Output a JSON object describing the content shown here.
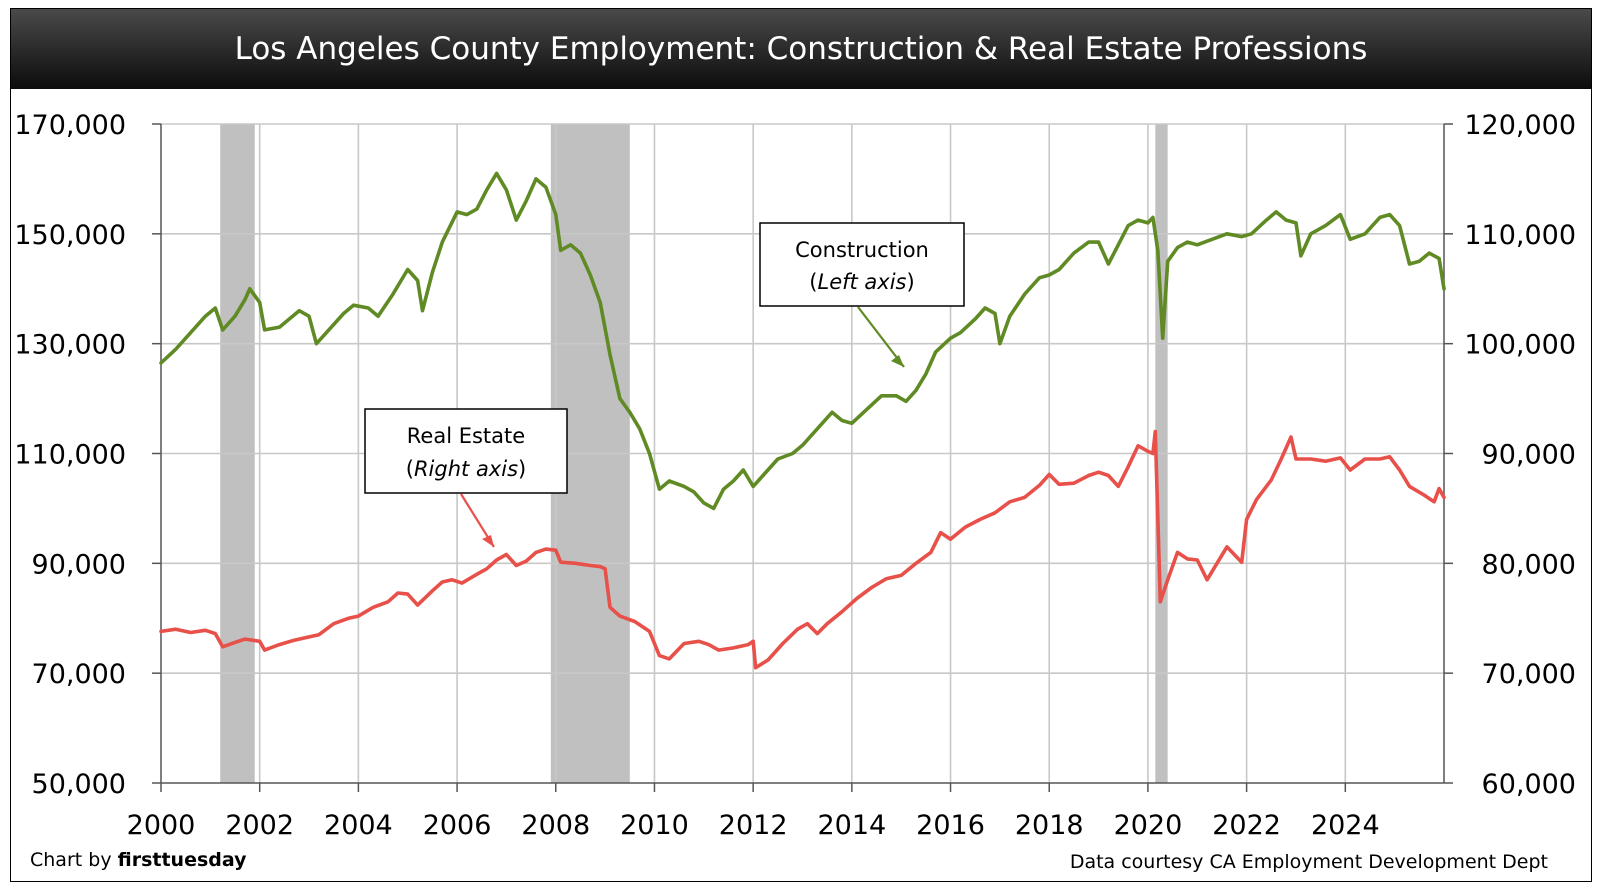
{
  "colors": {
    "construction": "#5f8a24",
    "real_estate": "#e8504a",
    "recession": "#c0c0c0",
    "grid": "#c8c8c8"
  },
  "chart_data": {
    "type": "line",
    "title": "Los Angeles County Employment: Construction & Real Estate Professions",
    "x_ticks": [
      "2000",
      "2002",
      "2004",
      "2006",
      "2008",
      "2010",
      "2012",
      "2014",
      "2016",
      "2018",
      "2020",
      "2022",
      "2024"
    ],
    "xlim": [
      2000,
      2026
    ],
    "left_axis": {
      "ylim": [
        50000,
        170000
      ],
      "ticks": [
        "50,000",
        "70,000",
        "90,000",
        "110,000",
        "130,000",
        "150,000",
        "170,000"
      ]
    },
    "right_axis": {
      "ylim": [
        60000,
        120000
      ],
      "ticks": [
        "60,000",
        "70,000",
        "80,000",
        "90,000",
        "100,000",
        "110,000",
        "120,000"
      ]
    },
    "grid": true,
    "recessions": [
      [
        2001.2,
        2001.9
      ],
      [
        2007.9,
        2009.5
      ],
      [
        2020.15,
        2020.4
      ]
    ],
    "series": [
      {
        "name": "Construction",
        "axis": "left",
        "points": [
          [
            2000.0,
            126500
          ],
          [
            2000.3,
            129000
          ],
          [
            2000.6,
            132000
          ],
          [
            2000.9,
            135000
          ],
          [
            2001.1,
            136500
          ],
          [
            2001.25,
            132500
          ],
          [
            2001.5,
            135000
          ],
          [
            2001.7,
            138000
          ],
          [
            2001.8,
            140000
          ],
          [
            2002.0,
            137500
          ],
          [
            2002.1,
            132500
          ],
          [
            2002.4,
            133000
          ],
          [
            2002.6,
            134500
          ],
          [
            2002.8,
            136000
          ],
          [
            2003.0,
            135000
          ],
          [
            2003.15,
            130000
          ],
          [
            2003.4,
            132500
          ],
          [
            2003.7,
            135500
          ],
          [
            2003.9,
            137000
          ],
          [
            2004.2,
            136500
          ],
          [
            2004.4,
            135000
          ],
          [
            2004.7,
            139000
          ],
          [
            2005.0,
            143500
          ],
          [
            2005.2,
            141500
          ],
          [
            2005.3,
            136000
          ],
          [
            2005.5,
            143000
          ],
          [
            2005.7,
            148500
          ],
          [
            2006.0,
            154000
          ],
          [
            2006.2,
            153500
          ],
          [
            2006.4,
            154500
          ],
          [
            2006.6,
            158000
          ],
          [
            2006.8,
            161000
          ],
          [
            2007.0,
            158000
          ],
          [
            2007.2,
            152500
          ],
          [
            2007.4,
            156000
          ],
          [
            2007.6,
            160000
          ],
          [
            2007.8,
            158500
          ],
          [
            2008.0,
            153500
          ],
          [
            2008.1,
            147000
          ],
          [
            2008.3,
            148000
          ],
          [
            2008.5,
            146500
          ],
          [
            2008.7,
            142500
          ],
          [
            2008.9,
            137500
          ],
          [
            2009.1,
            128000
          ],
          [
            2009.3,
            120000
          ],
          [
            2009.5,
            117500
          ],
          [
            2009.7,
            114500
          ],
          [
            2009.9,
            110000
          ],
          [
            2010.1,
            103500
          ],
          [
            2010.3,
            105000
          ],
          [
            2010.6,
            104000
          ],
          [
            2010.8,
            103000
          ],
          [
            2011.0,
            101000
          ],
          [
            2011.2,
            100000
          ],
          [
            2011.4,
            103500
          ],
          [
            2011.6,
            105000
          ],
          [
            2011.8,
            107000
          ],
          [
            2012.0,
            104000
          ],
          [
            2012.2,
            106000
          ],
          [
            2012.5,
            109000
          ],
          [
            2012.8,
            110000
          ],
          [
            2013.0,
            111500
          ],
          [
            2013.3,
            114500
          ],
          [
            2013.6,
            117500
          ],
          [
            2013.8,
            116000
          ],
          [
            2014.0,
            115500
          ],
          [
            2014.3,
            118000
          ],
          [
            2014.6,
            120500
          ],
          [
            2014.9,
            120500
          ],
          [
            2015.1,
            119500
          ],
          [
            2015.3,
            121500
          ],
          [
            2015.5,
            124500
          ],
          [
            2015.7,
            128500
          ],
          [
            2016.0,
            131000
          ],
          [
            2016.2,
            132000
          ],
          [
            2016.5,
            134500
          ],
          [
            2016.7,
            136500
          ],
          [
            2016.9,
            135500
          ],
          [
            2017.0,
            130000
          ],
          [
            2017.2,
            135000
          ],
          [
            2017.5,
            139000
          ],
          [
            2017.8,
            142000
          ],
          [
            2018.0,
            142500
          ],
          [
            2018.2,
            143500
          ],
          [
            2018.5,
            146500
          ],
          [
            2018.8,
            148500
          ],
          [
            2019.0,
            148500
          ],
          [
            2019.2,
            144500
          ],
          [
            2019.4,
            148000
          ],
          [
            2019.6,
            151500
          ],
          [
            2019.8,
            152500
          ],
          [
            2020.0,
            152000
          ],
          [
            2020.1,
            153000
          ],
          [
            2020.2,
            147000
          ],
          [
            2020.3,
            131000
          ],
          [
            2020.4,
            145000
          ],
          [
            2020.6,
            147500
          ],
          [
            2020.8,
            148500
          ],
          [
            2021.0,
            148000
          ],
          [
            2021.3,
            149000
          ],
          [
            2021.6,
            150000
          ],
          [
            2021.9,
            149500
          ],
          [
            2022.1,
            150000
          ],
          [
            2022.4,
            152500
          ],
          [
            2022.6,
            154000
          ],
          [
            2022.8,
            152500
          ],
          [
            2023.0,
            152000
          ],
          [
            2023.1,
            146000
          ],
          [
            2023.3,
            150000
          ],
          [
            2023.6,
            151500
          ],
          [
            2023.9,
            153500
          ],
          [
            2024.1,
            149000
          ],
          [
            2024.4,
            150000
          ],
          [
            2024.7,
            153000
          ],
          [
            2024.9,
            153500
          ],
          [
            2025.1,
            151500
          ],
          [
            2025.3,
            144500
          ],
          [
            2025.5,
            145000
          ],
          [
            2025.7,
            146500
          ],
          [
            2025.9,
            145500
          ],
          [
            2026.0,
            140000
          ]
        ]
      },
      {
        "name": "Real Estate",
        "axis": "right",
        "points": [
          [
            2000.0,
            73800
          ],
          [
            2000.3,
            74000
          ],
          [
            2000.6,
            73700
          ],
          [
            2000.9,
            73900
          ],
          [
            2001.1,
            73600
          ],
          [
            2001.25,
            72400
          ],
          [
            2001.5,
            72800
          ],
          [
            2001.7,
            73100
          ],
          [
            2002.0,
            72900
          ],
          [
            2002.1,
            72100
          ],
          [
            2002.4,
            72600
          ],
          [
            2002.7,
            73000
          ],
          [
            2002.9,
            73200
          ],
          [
            2003.2,
            73500
          ],
          [
            2003.5,
            74500
          ],
          [
            2003.8,
            75000
          ],
          [
            2004.0,
            75200
          ],
          [
            2004.3,
            76000
          ],
          [
            2004.6,
            76500
          ],
          [
            2004.8,
            77300
          ],
          [
            2005.0,
            77200
          ],
          [
            2005.2,
            76200
          ],
          [
            2005.5,
            77500
          ],
          [
            2005.7,
            78300
          ],
          [
            2005.9,
            78500
          ],
          [
            2006.1,
            78200
          ],
          [
            2006.4,
            79000
          ],
          [
            2006.6,
            79500
          ],
          [
            2006.8,
            80300
          ],
          [
            2007.0,
            80800
          ],
          [
            2007.2,
            79800
          ],
          [
            2007.4,
            80200
          ],
          [
            2007.6,
            81000
          ],
          [
            2007.8,
            81300
          ],
          [
            2008.0,
            81200
          ],
          [
            2008.1,
            80100
          ],
          [
            2008.4,
            80000
          ],
          [
            2008.7,
            79800
          ],
          [
            2008.9,
            79700
          ],
          [
            2009.0,
            79500
          ],
          [
            2009.1,
            76000
          ],
          [
            2009.3,
            75200
          ],
          [
            2009.6,
            74700
          ],
          [
            2009.9,
            73800
          ],
          [
            2010.1,
            71600
          ],
          [
            2010.3,
            71300
          ],
          [
            2010.6,
            72700
          ],
          [
            2010.9,
            72900
          ],
          [
            2011.1,
            72600
          ],
          [
            2011.3,
            72100
          ],
          [
            2011.6,
            72300
          ],
          [
            2011.9,
            72600
          ],
          [
            2012.0,
            72900
          ],
          [
            2012.05,
            70500
          ],
          [
            2012.3,
            71200
          ],
          [
            2012.6,
            72700
          ],
          [
            2012.9,
            74000
          ],
          [
            2013.1,
            74500
          ],
          [
            2013.3,
            73600
          ],
          [
            2013.5,
            74500
          ],
          [
            2013.8,
            75600
          ],
          [
            2014.1,
            76800
          ],
          [
            2014.4,
            77800
          ],
          [
            2014.7,
            78600
          ],
          [
            2015.0,
            78900
          ],
          [
            2015.3,
            80000
          ],
          [
            2015.6,
            81000
          ],
          [
            2015.8,
            82800
          ],
          [
            2016.0,
            82200
          ],
          [
            2016.3,
            83300
          ],
          [
            2016.6,
            84000
          ],
          [
            2016.9,
            84600
          ],
          [
            2017.2,
            85600
          ],
          [
            2017.5,
            86000
          ],
          [
            2017.8,
            87100
          ],
          [
            2018.0,
            88100
          ],
          [
            2018.2,
            87200
          ],
          [
            2018.5,
            87300
          ],
          [
            2018.8,
            88000
          ],
          [
            2019.0,
            88300
          ],
          [
            2019.2,
            88000
          ],
          [
            2019.4,
            87000
          ],
          [
            2019.6,
            88800
          ],
          [
            2019.8,
            90700
          ],
          [
            2020.0,
            90200
          ],
          [
            2020.1,
            90000
          ],
          [
            2020.15,
            92000
          ],
          [
            2020.25,
            76500
          ],
          [
            2020.4,
            78500
          ],
          [
            2020.6,
            81000
          ],
          [
            2020.8,
            80400
          ],
          [
            2021.0,
            80300
          ],
          [
            2021.2,
            78500
          ],
          [
            2021.4,
            80000
          ],
          [
            2021.6,
            81500
          ],
          [
            2021.9,
            80100
          ],
          [
            2022.0,
            84000
          ],
          [
            2022.2,
            85800
          ],
          [
            2022.5,
            87600
          ],
          [
            2022.7,
            89500
          ],
          [
            2022.9,
            91500
          ],
          [
            2023.0,
            89500
          ],
          [
            2023.3,
            89500
          ],
          [
            2023.6,
            89300
          ],
          [
            2023.9,
            89600
          ],
          [
            2024.1,
            88500
          ],
          [
            2024.4,
            89500
          ],
          [
            2024.7,
            89500
          ],
          [
            2024.9,
            89700
          ],
          [
            2025.1,
            88500
          ],
          [
            2025.3,
            87000
          ],
          [
            2025.6,
            86200
          ],
          [
            2025.8,
            85600
          ],
          [
            2025.9,
            86800
          ],
          [
            2026.0,
            86000
          ]
        ]
      }
    ],
    "annotations": [
      {
        "line1": "Construction",
        "line2": "Left axis"
      },
      {
        "line1": "Real Estate",
        "line2": "Right axis"
      }
    ],
    "credit_left_prefix": "Chart by ",
    "credit_left_brand": "firsttuesday",
    "credit_right": "Data courtesy CA Employment Development Dept"
  }
}
